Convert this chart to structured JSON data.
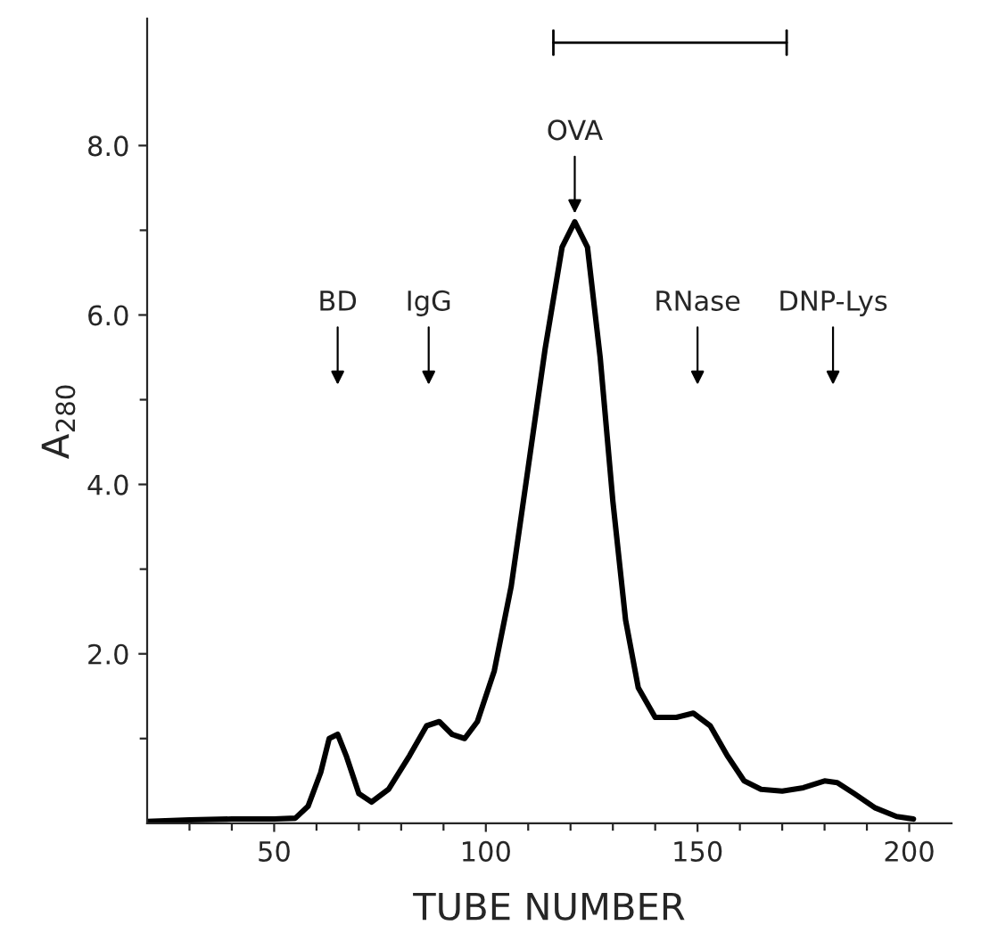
{
  "chart_data": {
    "type": "line",
    "xlabel": "TUBE NUMBER",
    "ylabel": "A$_{280}$",
    "x": [
      20,
      30,
      40,
      50,
      55,
      58,
      61,
      63,
      65,
      67,
      70,
      73,
      77,
      82,
      86,
      89,
      92,
      95,
      98,
      102,
      106,
      110,
      114,
      118,
      121,
      124,
      127,
      130,
      133,
      136,
      140,
      145,
      149,
      153,
      157,
      161,
      165,
      170,
      175,
      180,
      183,
      187,
      192,
      197,
      201
    ],
    "series": [
      {
        "color": "#000000",
        "values": [
          0.02,
          0.04,
          0.05,
          0.05,
          0.06,
          0.2,
          0.6,
          1.0,
          1.05,
          0.8,
          0.35,
          0.25,
          0.4,
          0.8,
          1.15,
          1.2,
          1.05,
          1.0,
          1.2,
          1.8,
          2.8,
          4.2,
          5.6,
          6.8,
          7.1,
          6.8,
          5.5,
          3.8,
          2.4,
          1.6,
          1.25,
          1.25,
          1.3,
          1.15,
          0.8,
          0.5,
          0.4,
          0.38,
          0.42,
          0.5,
          0.48,
          0.35,
          0.18,
          0.08,
          0.05
        ]
      }
    ],
    "annotations": [
      {
        "text": "BD",
        "x": 65
      },
      {
        "text": "IgG",
        "x": 86.5
      },
      {
        "text": "OVA",
        "x": 121,
        "y": 7.2
      },
      {
        "text": "RNase",
        "x": 150
      },
      {
        "text": "DNP-Lys",
        "x": 182
      }
    ],
    "xlim": [
      20,
      210
    ],
    "ylim": [
      0,
      9.5
    ],
    "xticks": [
      {
        "value": 30,
        "label": null
      },
      {
        "value": 40,
        "label": null
      },
      50,
      {
        "value": 60,
        "label": null
      },
      {
        "value": 70,
        "label": null
      },
      {
        "value": 80,
        "label": null
      },
      {
        "value": 90,
        "label": null
      },
      100,
      {
        "value": 110,
        "label": null
      },
      {
        "value": 120,
        "label": null
      },
      {
        "value": 130,
        "label": null
      },
      {
        "value": 140,
        "label": null
      },
      150,
      {
        "value": 160,
        "label": null
      },
      {
        "value": 170,
        "label": null
      },
      {
        "value": 180,
        "label": null
      },
      {
        "value": 190,
        "label": null
      },
      200
    ],
    "yticks": [
      {
        "value": 1,
        "label": null
      },
      {
        "value": 2,
        "label": "2.0"
      },
      {
        "value": 3,
        "label": null
      },
      {
        "value": 4,
        "label": "4.0"
      },
      {
        "value": 5,
        "label": null
      },
      {
        "value": 6,
        "label": "6.0"
      },
      {
        "value": 7,
        "label": null
      },
      {
        "value": 8,
        "label": "8.0"
      }
    ],
    "grid": false,
    "legend": false,
    "marker": "none",
    "line_style": "solid"
  }
}
